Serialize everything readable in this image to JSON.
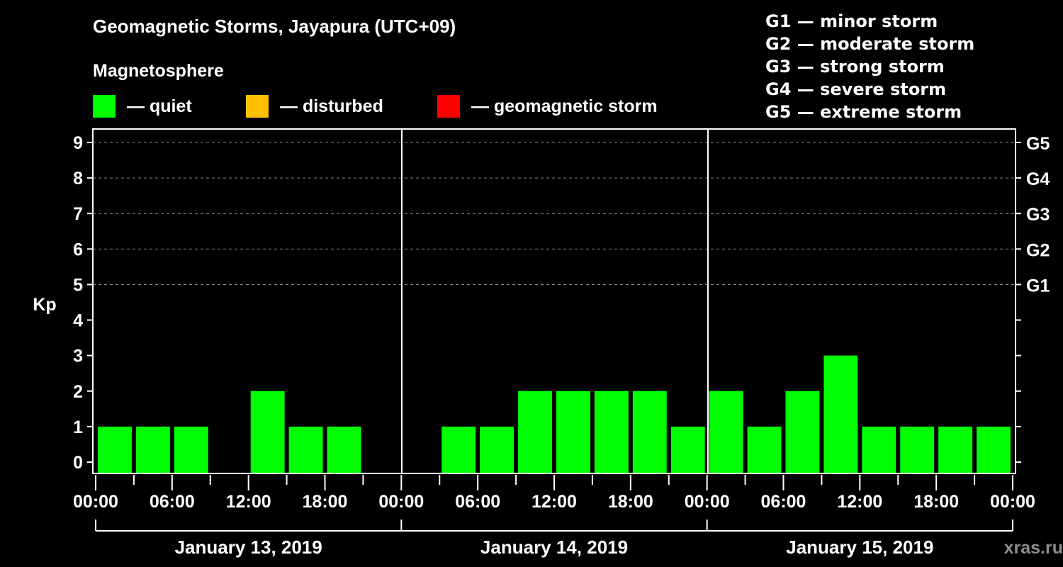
{
  "header": {
    "title": "Geomagnetic Storms, Jayapura (UTC+09)",
    "subtitle": "Magnetosphere"
  },
  "legend": [
    {
      "label": "— quiet",
      "color": "#00ff00"
    },
    {
      "label": "— disturbed",
      "color": "#ffc000"
    },
    {
      "label": "— geomagnetic storm",
      "color": "#ff0000"
    }
  ],
  "g_scale": [
    "G1 — minor storm",
    "G2 — moderate storm",
    "G3 — strong storm",
    "G4 — severe storm",
    "G5 — extreme storm"
  ],
  "watermark": "xras.ru",
  "chart_data": {
    "type": "bar",
    "title": "Geomagnetic Storms, Jayapura (UTC+09)",
    "subtitle": "Magnetosphere",
    "ylabel": "Kp",
    "xlabel": "",
    "ylim": [
      0,
      9
    ],
    "yticks": [
      0,
      1,
      2,
      3,
      4,
      5,
      6,
      7,
      8,
      9
    ],
    "right_axis_labels": [
      {
        "y": 5,
        "label": "G1"
      },
      {
        "y": 6,
        "label": "G2"
      },
      {
        "y": 7,
        "label": "G3"
      },
      {
        "y": 8,
        "label": "G4"
      },
      {
        "y": 9,
        "label": "G5"
      }
    ],
    "grid": "dashed horizontal at Kp 5-9",
    "bar_color": "#00ff00",
    "xtick_labels": [
      "00:00",
      "06:00",
      "12:00",
      "18:00",
      "00:00",
      "06:00",
      "12:00",
      "18:00",
      "00:00",
      "06:00",
      "12:00",
      "18:00",
      "00:00"
    ],
    "days": [
      "January 13, 2019",
      "January 14, 2019",
      "January 15, 2019"
    ],
    "categories": [
      "Jan13 00-03",
      "Jan13 03-06",
      "Jan13 06-09",
      "Jan13 09-12",
      "Jan13 12-15",
      "Jan13 15-18",
      "Jan13 18-21",
      "Jan13 21-24",
      "Jan14 00-03",
      "Jan14 03-06",
      "Jan14 06-09",
      "Jan14 09-12",
      "Jan14 12-15",
      "Jan14 15-18",
      "Jan14 18-21",
      "Jan14 21-24",
      "Jan15 00-03",
      "Jan15 03-06",
      "Jan15 06-09",
      "Jan15 09-12",
      "Jan15 12-15",
      "Jan15 15-18",
      "Jan15 18-21",
      "Jan15 21-24"
    ],
    "values": [
      1,
      1,
      1,
      0,
      2,
      1,
      1,
      0,
      0,
      1,
      1,
      2,
      2,
      2,
      2,
      1,
      2,
      1,
      2,
      3,
      1,
      1,
      1,
      1
    ]
  }
}
